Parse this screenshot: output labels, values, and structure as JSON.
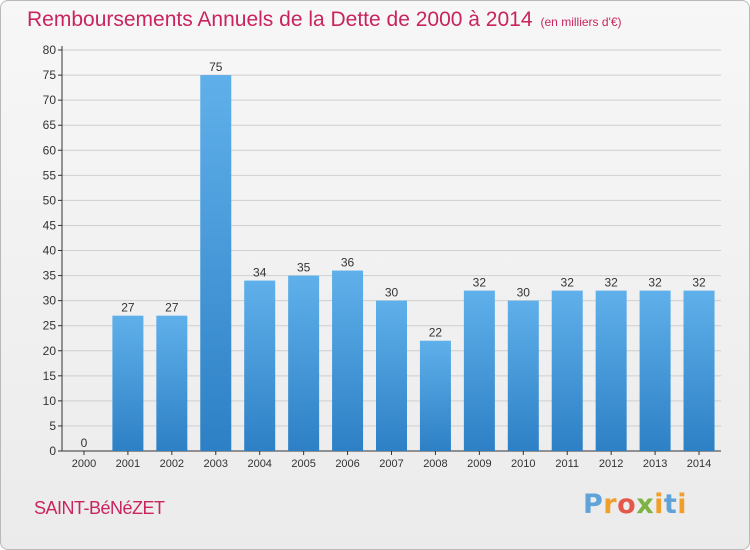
{
  "header": {
    "title": "Remboursements Annuels de la Dette de 2000 à 2014",
    "subtitle": "(en milliers d'€)"
  },
  "footer": {
    "commune": "SAINT-BéNéZET",
    "logo_letters": [
      "P",
      "r",
      "o",
      "x",
      "i",
      "t",
      "i"
    ]
  },
  "colors": {
    "title": "#c9245f",
    "bar_light": "#5fb0ea",
    "bar_dark": "#2d80c5",
    "axis": "#333333",
    "grid": "#cfcfcf"
  },
  "chart_data": {
    "type": "bar",
    "title": "Remboursements Annuels de la Dette de 2000 à 2014",
    "subtitle": "(en milliers d'€)",
    "categories": [
      "2000",
      "2001",
      "2002",
      "2003",
      "2004",
      "2005",
      "2006",
      "2007",
      "2008",
      "2009",
      "2010",
      "2011",
      "2012",
      "2013",
      "2014"
    ],
    "values": [
      0,
      27,
      27,
      75,
      34,
      35,
      36,
      30,
      22,
      32,
      30,
      32,
      32,
      32,
      32
    ],
    "ylim": [
      0,
      80
    ],
    "yticks": [
      0,
      5,
      10,
      15,
      20,
      25,
      30,
      35,
      40,
      45,
      50,
      55,
      60,
      65,
      70,
      75,
      80
    ],
    "grid": true,
    "data_labels": true
  }
}
